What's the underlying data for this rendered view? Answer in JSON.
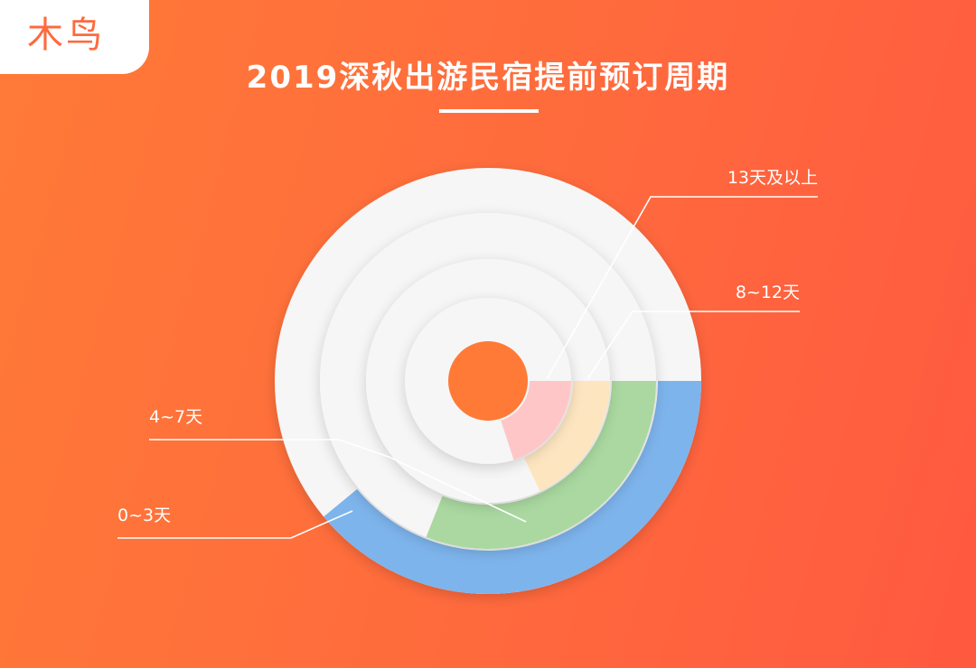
{
  "logo": {
    "text": "木鸟"
  },
  "title": "2019深秋出游民宿提前预订周期",
  "colors": {
    "accent": "#ff6a3d",
    "track": "#f6f6f6",
    "center": "#ff7a37"
  },
  "chart_data": {
    "type": "radial-bar",
    "title": "2019深秋出游民宿提前预订周期",
    "unit": "share of full circle (approx.)",
    "series": [
      {
        "name": "0~3天",
        "value": 0.39,
        "color": "#7db4ec"
      },
      {
        "name": "4~7天",
        "value": 0.31,
        "color": "#aad8a0"
      },
      {
        "name": "8~12天",
        "value": 0.18,
        "color": "#fde5c0"
      },
      {
        "name": "13天及以上",
        "value": 0.2,
        "color": "#ffc6c8"
      }
    ]
  }
}
